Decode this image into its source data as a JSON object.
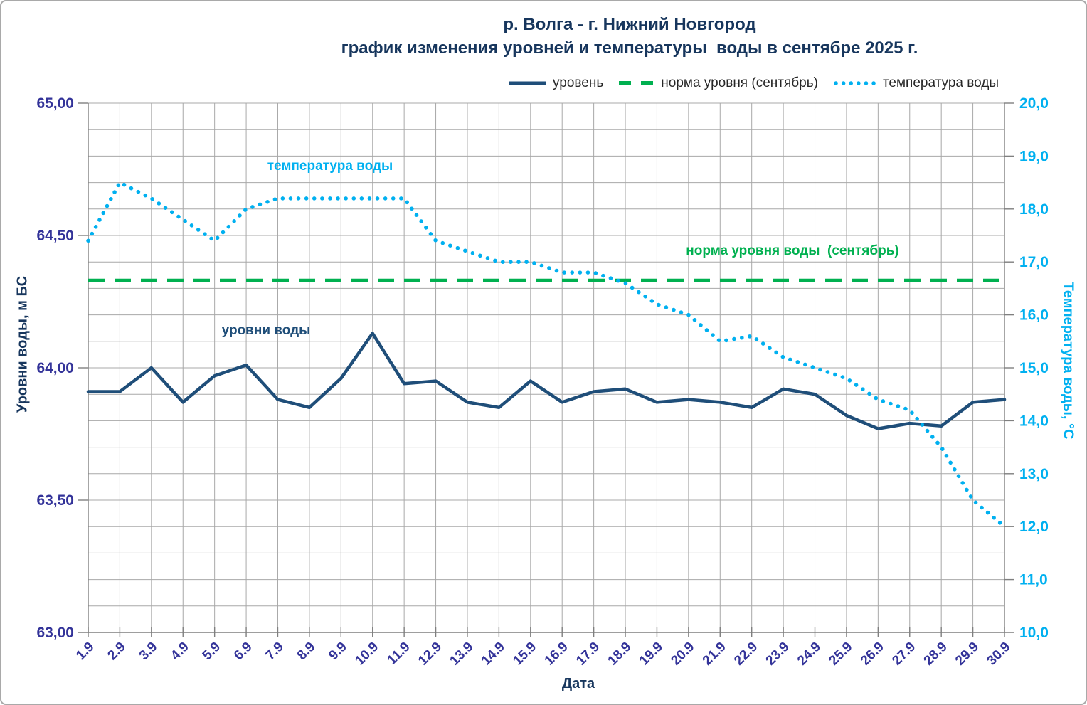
{
  "title": {
    "line1": "р. Волга - г. Нижний Новгород",
    "line2": "график изменения уровней и температуры  воды в сентябре 2025 г."
  },
  "legend": [
    {
      "label": "уровень",
      "style": "solid",
      "color": "#1F4E79"
    },
    {
      "label": "норма уровня (сентябрь)",
      "style": "dashed",
      "color": "#00B050"
    },
    {
      "label": "температура воды",
      "style": "dotted",
      "color": "#00B0F0"
    }
  ],
  "annotations": {
    "temperature": {
      "text": "температура воды",
      "color": "#00B0F0"
    },
    "norm": {
      "text": "норма уровня воды  (сентябрь)",
      "color": "#00B050"
    },
    "level": {
      "text": "уровни воды",
      "color": "#1F4E79"
    }
  },
  "colors": {
    "level_line": "#1F4E79",
    "norm_line": "#00B050",
    "temperature_line": "#00B0F0",
    "gridline": "#A8A8A8",
    "axis_line": "#7F7F7F",
    "tick_label_left": "#333399",
    "tick_label_right": "#00B0F0",
    "title_text": "#17365D"
  },
  "chart_data": {
    "type": "line",
    "title": "р. Волга - г. Нижний Новгород — график изменения уровней и температуры воды в сентябре 2025 г.",
    "x_label": "Дата",
    "categories": [
      "1.9",
      "2.9",
      "3.9",
      "4.9",
      "5.9",
      "6.9",
      "7.9",
      "8.9",
      "9.9",
      "10.9",
      "11.9",
      "12.9",
      "13.9",
      "14.9",
      "15.9",
      "16.9",
      "17.9",
      "18.9",
      "19.9",
      "20.9",
      "21.9",
      "22.9",
      "23.9",
      "24.9",
      "25.9",
      "26.9",
      "27.9",
      "28.9",
      "29.9",
      "30.9"
    ],
    "left_axis": {
      "title": "Уровни воды, м БС",
      "min": 63.0,
      "max": 65.0,
      "tick_step": 0.5,
      "minor_step": 0.1,
      "tick_labels": [
        "65,00",
        "64,50",
        "64,00",
        "63,50",
        "63,00"
      ]
    },
    "right_axis": {
      "title": "Температура воды, °С",
      "min": 10.0,
      "max": 20.0,
      "tick_step": 1.0,
      "tick_labels": [
        "20,0",
        "19,0",
        "18,0",
        "17,0",
        "16,0",
        "15,0",
        "14,0",
        "13,0",
        "12,0",
        "11,0",
        "10,0"
      ]
    },
    "grid": {
      "horizontal_step": 0.1,
      "vertical_every_category": true
    },
    "legend_position": "top",
    "series": [
      {
        "name": "уровень",
        "axis": "left",
        "style": "solid",
        "color": "#1F4E79",
        "values": [
          63.91,
          63.91,
          64.0,
          63.87,
          63.97,
          64.01,
          63.88,
          63.85,
          63.96,
          64.13,
          63.94,
          63.95,
          63.87,
          63.85,
          63.95,
          63.87,
          63.91,
          63.92,
          63.87,
          63.88,
          63.87,
          63.85,
          63.92,
          63.9,
          63.82,
          63.77,
          63.79,
          63.78,
          63.87,
          63.88
        ]
      },
      {
        "name": "норма уровня (сентябрь)",
        "axis": "left",
        "style": "dashed",
        "color": "#00B050",
        "value": 64.33
      },
      {
        "name": "температура воды",
        "axis": "right",
        "style": "dotted",
        "color": "#00B0F0",
        "values": [
          17.4,
          18.5,
          18.2,
          17.8,
          17.4,
          18.0,
          18.2,
          18.2,
          18.2,
          18.2,
          18.2,
          17.4,
          17.2,
          17.0,
          17.0,
          16.8,
          16.8,
          16.6,
          16.2,
          16.0,
          15.5,
          15.6,
          15.2,
          15.0,
          14.8,
          14.4,
          14.2,
          13.5,
          12.5,
          12.0
        ]
      }
    ]
  }
}
